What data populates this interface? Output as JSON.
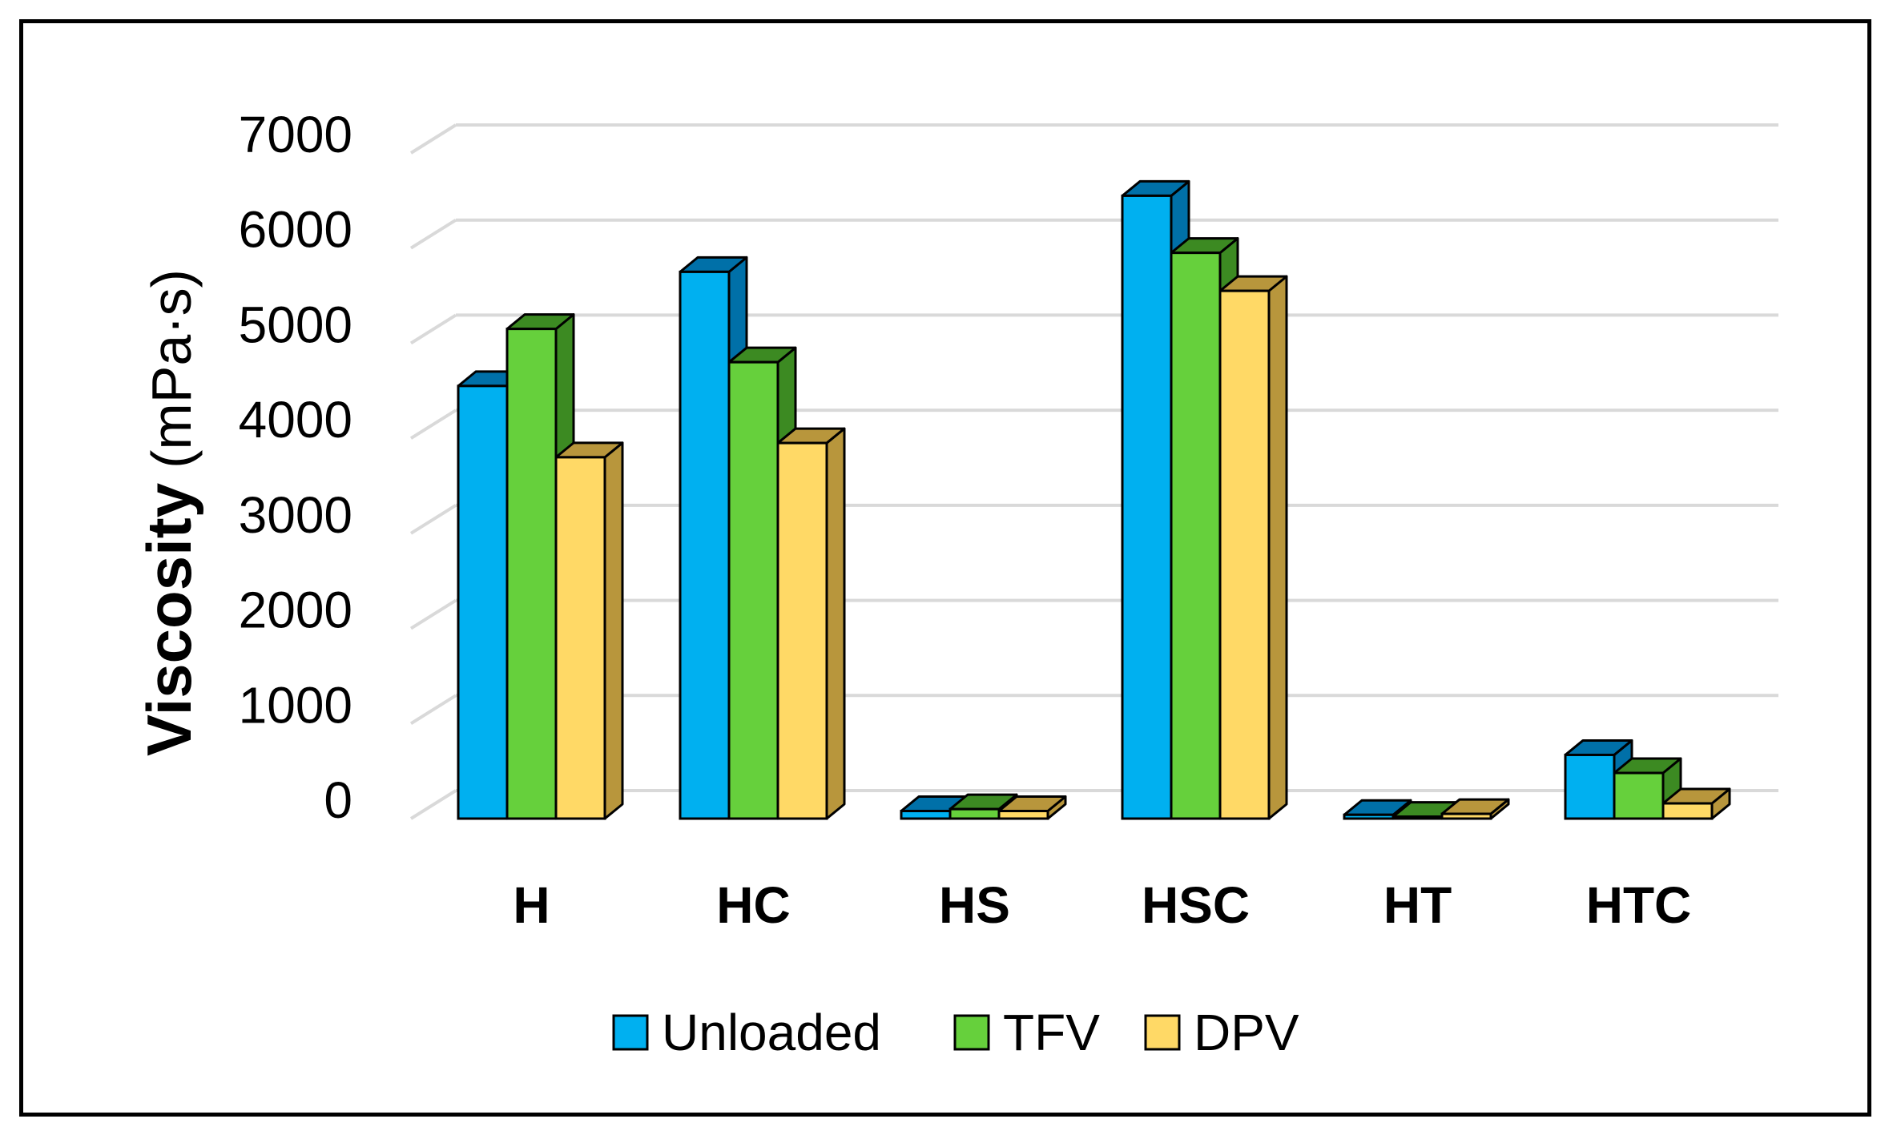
{
  "chart_data": {
    "type": "bar",
    "style": "3d-clustered-column",
    "title": "",
    "xlabel": "",
    "ylabel_main": "Viscosity",
    "ylabel_unit": "(mPa·s)",
    "ylim": [
      0,
      7000
    ],
    "yticks": [
      "0",
      "1000",
      "2000",
      "3000",
      "4000",
      "5000",
      "6000",
      "7000"
    ],
    "grid": true,
    "legend_position": "bottom",
    "categories": [
      "H",
      "HC",
      "HS",
      "HSC",
      "HT",
      "HTC"
    ],
    "series": [
      {
        "name": "Unloaded",
        "color": "#00B0F0",
        "side": "#0070A8",
        "values": [
          4550,
          5750,
          80,
          6550,
          40,
          670
        ]
      },
      {
        "name": "TFV",
        "color": "#66D03C",
        "side": "#3C8A22",
        "values": [
          5150,
          4800,
          100,
          5950,
          20,
          480
        ]
      },
      {
        "name": "DPV",
        "color": "#FFD966",
        "side": "#B8963C",
        "values": [
          3800,
          3950,
          80,
          5550,
          50,
          160
        ]
      }
    ]
  }
}
